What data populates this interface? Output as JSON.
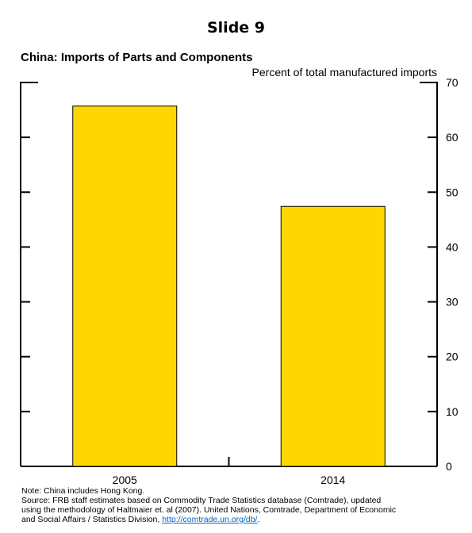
{
  "slide_title": "Slide 9",
  "chart_data": {
    "type": "bar",
    "title": "China: Imports of Parts and Components",
    "units": "Percent of total manufactured imports",
    "categories": [
      "2005",
      "2014"
    ],
    "values": [
      65.7,
      47.4
    ],
    "bar_color": "#FFD700",
    "ylim": [
      0,
      70
    ],
    "yticks": [
      0,
      10,
      20,
      30,
      40,
      50,
      60,
      70
    ],
    "ytick_labels": [
      "0",
      "10",
      "20",
      "30",
      "40",
      "50",
      "60",
      "70"
    ],
    "grid": false
  },
  "notes": {
    "line1": "Note: China includes Hong Kong.",
    "line2": "Source: FRB staff estimates based on Commodity Trade Statistics database (Comtrade), updated",
    "line3": "using the methodology of Haltmaier et. al (2007). United Nations, Comtrade, Department of Economic",
    "line4_prefix": "and Social Affairs / Statistics Division, ",
    "link": "http://comtrade.un.org/db/",
    "line4_suffix": "."
  }
}
